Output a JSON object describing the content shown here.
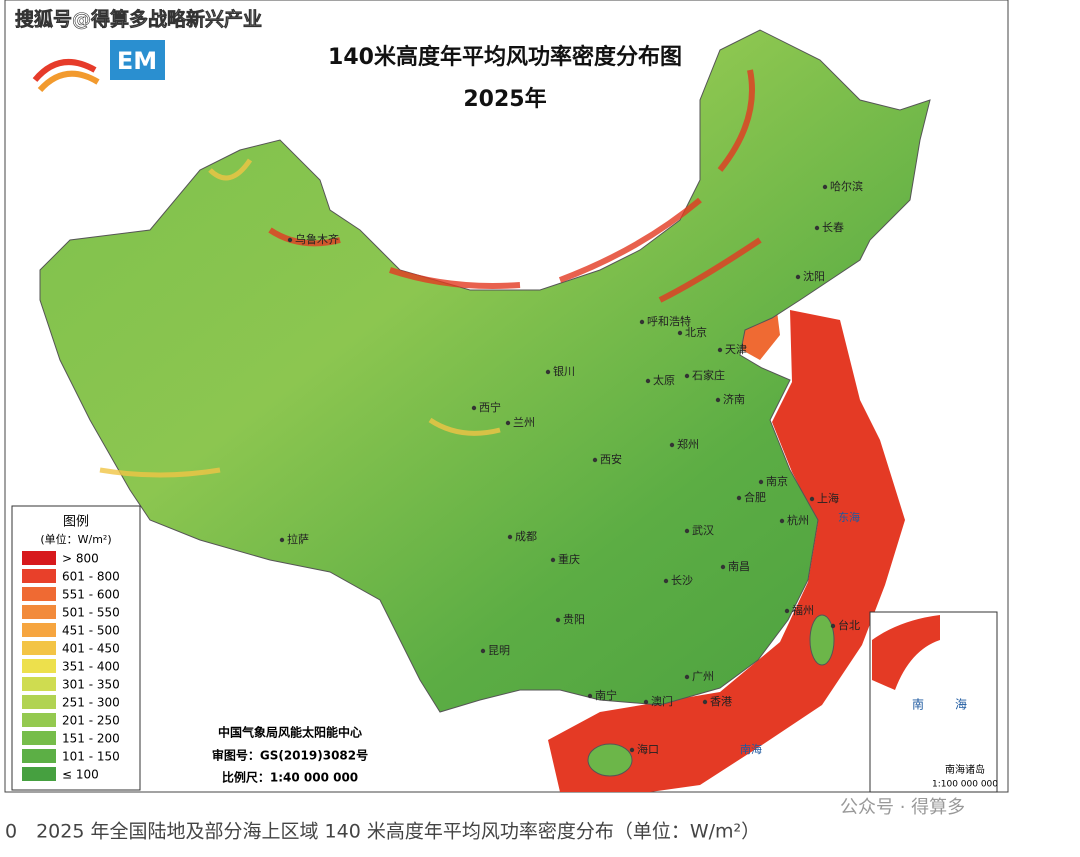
{
  "watermark_top": "搜狐号@得算多战略新兴产业",
  "header": {
    "title": "140米高度年平均风功率密度分布图",
    "subtitle": "2025年"
  },
  "legend": {
    "title": "图例",
    "unit": "(单位：W/m²)",
    "items": [
      {
        "label": "> 800",
        "color": "#d7191c"
      },
      {
        "label": "601 - 800",
        "color": "#e8402a"
      },
      {
        "label": "551 - 600",
        "color": "#ef6a33"
      },
      {
        "label": "501 - 550",
        "color": "#f28a3b"
      },
      {
        "label": "451 - 500",
        "color": "#f6a53f"
      },
      {
        "label": "401 - 450",
        "color": "#f3c445"
      },
      {
        "label": "351 - 400",
        "color": "#ede04c"
      },
      {
        "label": "301 - 350",
        "color": "#cfdc50"
      },
      {
        "label": "251 - 300",
        "color": "#b1d352"
      },
      {
        "label": "201 - 250",
        "color": "#94c94f"
      },
      {
        "label": "151 - 200",
        "color": "#76bd4a"
      },
      {
        "label": "101 - 150",
        "color": "#5caf45"
      },
      {
        "label": "≤ 100",
        "color": "#46a040"
      }
    ]
  },
  "cities": [
    "哈尔滨",
    "长春",
    "沈阳",
    "乌鲁木齐",
    "呼和浩特",
    "北京",
    "天津",
    "银川",
    "太原",
    "石家庄",
    "济南",
    "西宁",
    "兰州",
    "郑州",
    "西安",
    "南京",
    "合肥",
    "上海",
    "杭州",
    "拉萨",
    "成都",
    "武汉",
    "重庆",
    "长沙",
    "南昌",
    "福州",
    "台北",
    "贵阳",
    "昆明",
    "广州",
    "南宁",
    "澳门",
    "香港",
    "海口"
  ],
  "seas": [
    "东海",
    "南海"
  ],
  "credits": [
    "中国气象局风能太阳能中心",
    "审图号：GS(2019)3082号",
    "比例尺：1:40 000 000"
  ],
  "inset": {
    "sea_1": "南",
    "sea_2": "海",
    "label": "南海诸岛",
    "scale": "1:100 000 000"
  },
  "caption": "0　2025 年全国陆地及部分海上区域 140 米高度年平均风功率密度分布（单位：W/m²）",
  "watermark_bottom": "公众号 · 得算多"
}
